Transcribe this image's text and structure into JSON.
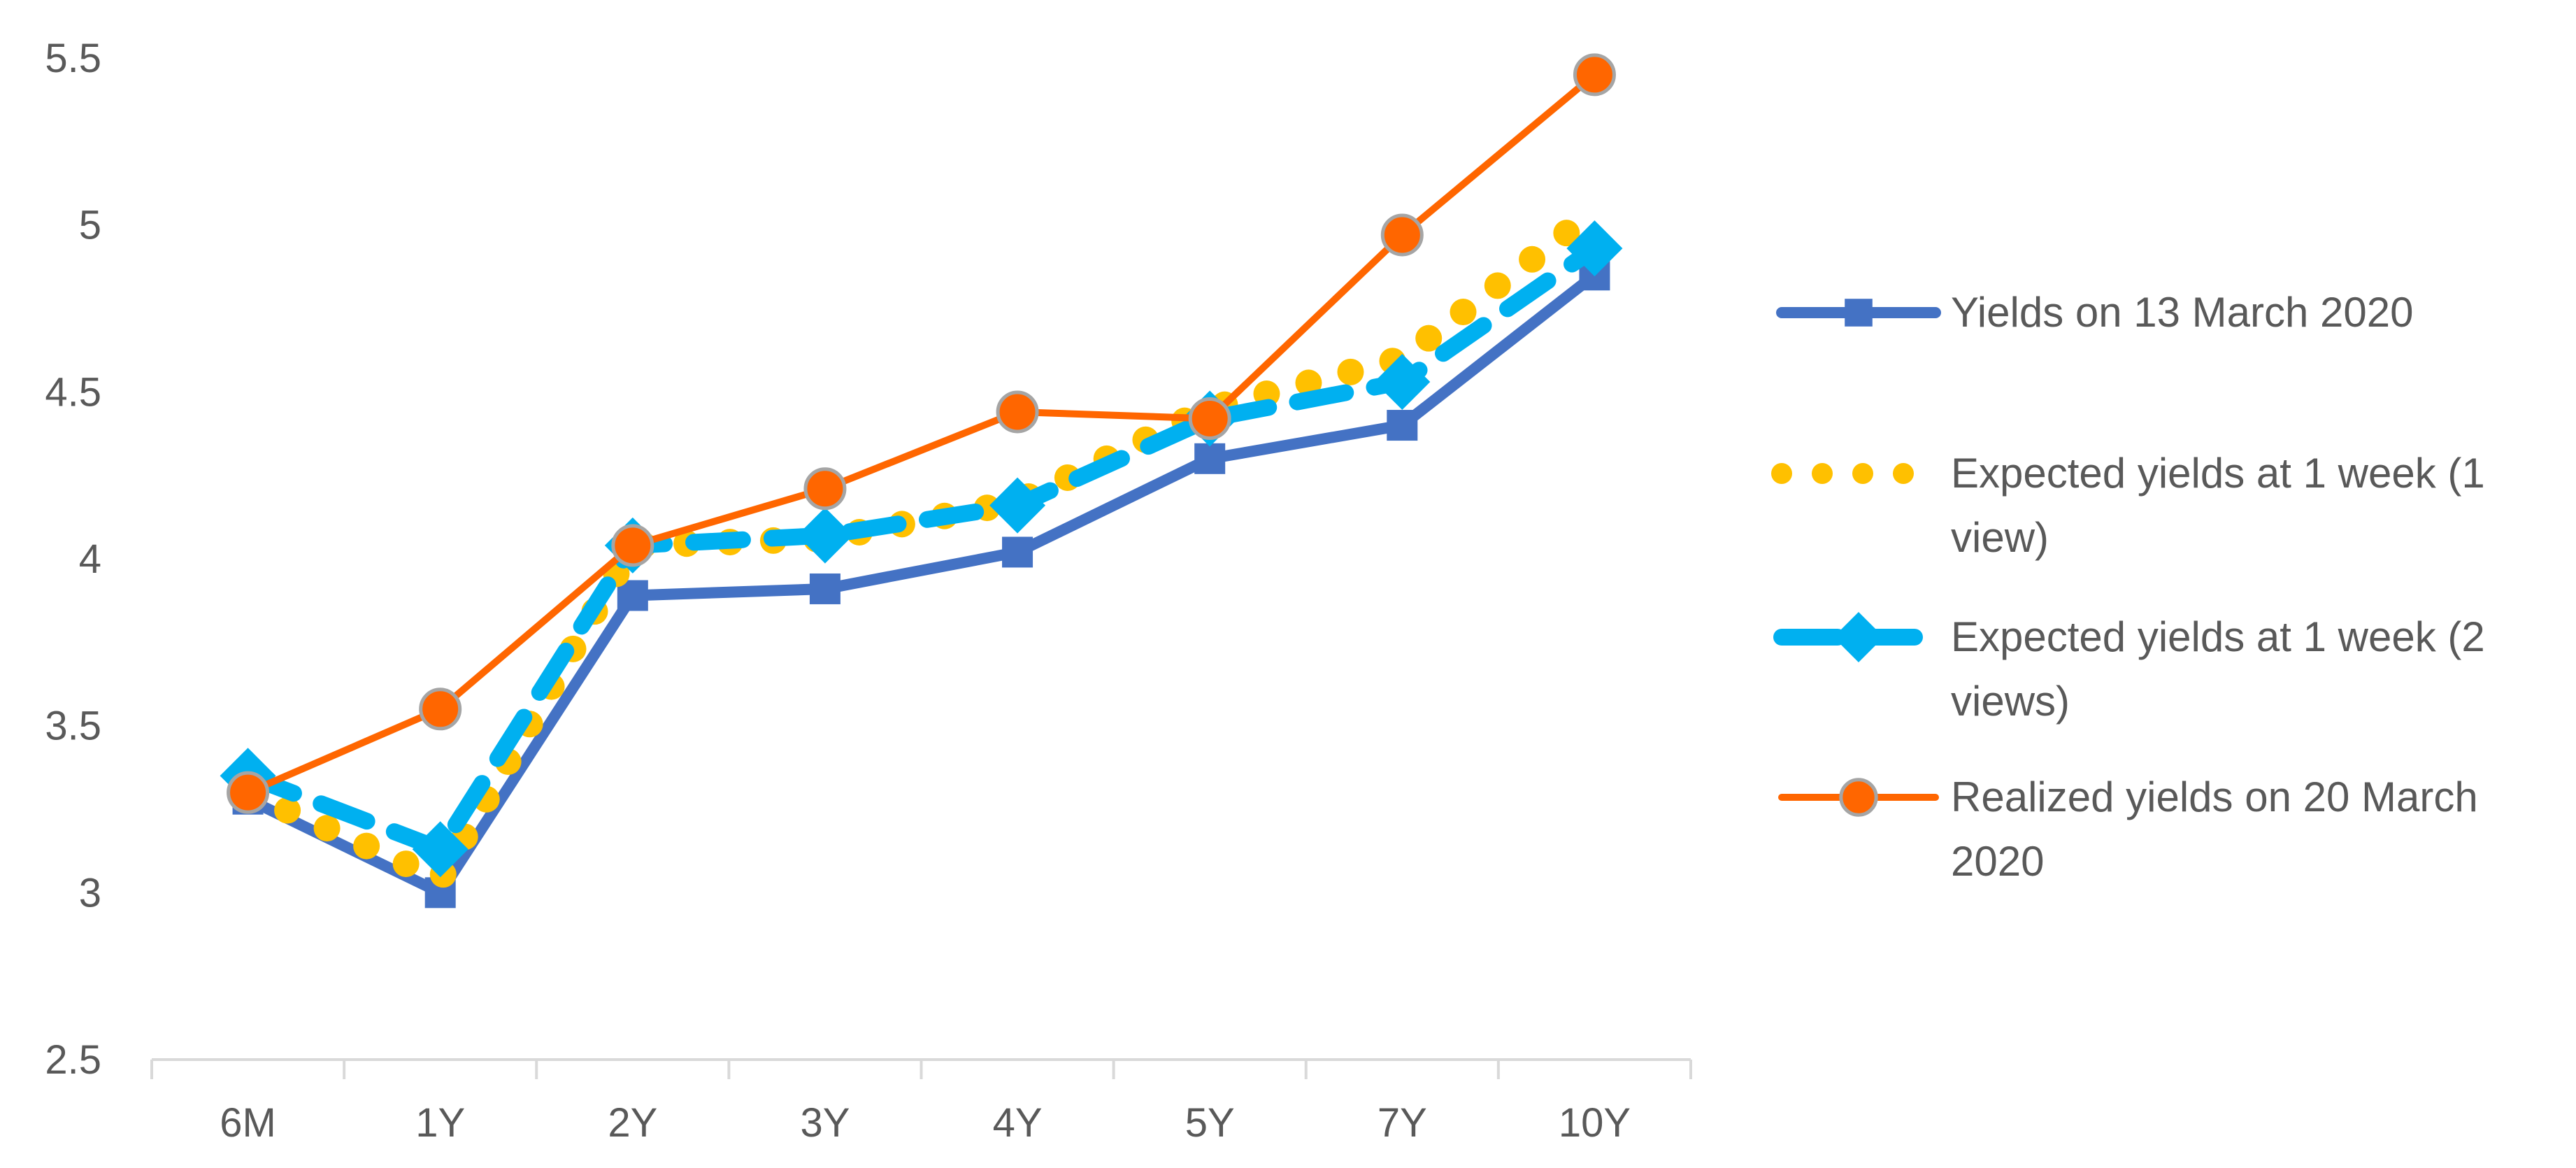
{
  "chart_data": {
    "type": "line",
    "categories": [
      "6M",
      "1Y",
      "2Y",
      "3Y",
      "4Y",
      "5Y",
      "7Y",
      "10Y"
    ],
    "ylim": [
      2.5,
      5.5
    ],
    "yticks": [
      "2.5",
      "3",
      "3.5",
      "4",
      "4.5",
      "5",
      "5.5"
    ],
    "grid": false,
    "legend_position": "right",
    "series": [
      {
        "name": "Yields on 13 March 2020",
        "legend_lines": [
          "Yields on 13 March 2020"
        ],
        "values": [
          3.28,
          3.0,
          3.89,
          3.91,
          4.02,
          4.3,
          4.4,
          4.85
        ],
        "color": "#4472C4",
        "style": "solid",
        "marker": "square"
      },
      {
        "name": "Expected yields at 1 week (1 view)",
        "legend_lines": [
          "Expected yields at 1 week (1",
          "view)"
        ],
        "values": [
          3.3,
          3.04,
          4.04,
          4.06,
          4.17,
          4.45,
          4.6,
          5.04
        ],
        "color": "#FFC000",
        "style": "dotted",
        "marker": "none"
      },
      {
        "name": "Expected yields at 1 week (2 views)",
        "legend_lines": [
          "Expected yields at 1 week (2",
          "views)"
        ],
        "values": [
          3.35,
          3.13,
          4.04,
          4.07,
          4.16,
          4.42,
          4.53,
          4.93
        ],
        "color": "#00B0F0",
        "style": "dashed",
        "marker": "diamond"
      },
      {
        "name": "Realized yields on 20 March 2020",
        "legend_lines": [
          "Realized yields on 20 March",
          "2020"
        ],
        "values": [
          3.3,
          3.55,
          4.04,
          4.21,
          4.44,
          4.42,
          4.97,
          5.45
        ],
        "color": "#FF6600",
        "style": "solid",
        "marker": "circle"
      }
    ]
  }
}
